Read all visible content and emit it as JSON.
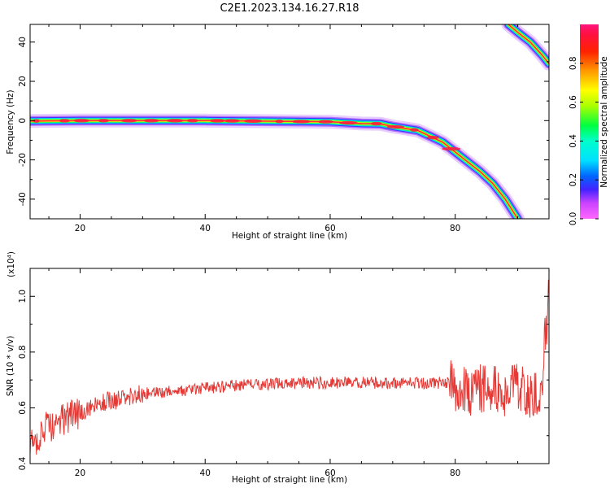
{
  "figure": {
    "title": "C2E1.2023.134.16.27.R18"
  },
  "chart_data": [
    {
      "type": "heatmap",
      "xlabel": "Height of straight line (km)",
      "ylabel": "Frequency (Hz)",
      "xlim": [
        12,
        95
      ],
      "ylim": [
        -50,
        49
      ],
      "xticks": [
        20,
        40,
        60,
        80
      ],
      "yticks": [
        -40,
        -20,
        0,
        20,
        40
      ],
      "colorbar": {
        "label": "Normalized spectral amplitude",
        "range": [
          0.0,
          1.0
        ],
        "ticks": [
          "0.0",
          "0.2",
          "0.4",
          "0.6",
          "0.8"
        ],
        "tick_values": [
          0.0,
          0.2,
          0.4,
          0.6,
          0.8
        ],
        "colormap": [
          "#ff00ff",
          "#0000ff",
          "#00ffff",
          "#00ff00",
          "#ffff00",
          "#ff0000",
          "#ff1493"
        ]
      },
      "ridges": [
        {
          "name": "",
          "points": [
            [
              12,
              -0.2
            ],
            [
              20,
              0
            ],
            [
              30,
              0
            ],
            [
              40,
              0
            ],
            [
              50,
              -0.3
            ],
            [
              60,
              -0.6
            ],
            [
              65,
              -1.5
            ],
            [
              68,
              -1.6
            ],
            [
              70,
              -3
            ],
            [
              72,
              -4
            ],
            [
              74,
              -5
            ],
            [
              76,
              -8
            ],
            [
              78,
              -11
            ],
            [
              80,
              -16
            ],
            [
              82,
              -21
            ],
            [
              84,
              -26
            ],
            [
              86,
              -32
            ],
            [
              88,
              -40
            ],
            [
              90,
              -50
            ]
          ]
        },
        {
          "name": "",
          "points": [
            [
              88.5,
              49
            ],
            [
              90,
              45
            ],
            [
              92,
              40
            ],
            [
              94,
              33
            ],
            [
              95,
              29
            ]
          ]
        }
      ]
    },
    {
      "type": "line",
      "xlabel": "Height of straight line (km)",
      "ylabel": "SNR (10 * v/v)",
      "yscale_label": "(x10⁴)",
      "xlim": [
        12,
        95
      ],
      "ylim": [
        0.4,
        1.1
      ],
      "xticks": [
        20,
        40,
        60,
        80
      ],
      "yticks": [
        0.4,
        0.6,
        0.8,
        1.0
      ],
      "yticklabels": [
        "0.4",
        "0.6",
        "0.8",
        "1.0"
      ],
      "series": [
        {
          "name": "",
          "color": "#e53935",
          "trend": [
            [
              12,
              0.46
            ],
            [
              14,
              0.52
            ],
            [
              16,
              0.54
            ],
            [
              18,
              0.57
            ],
            [
              20,
              0.58
            ],
            [
              22,
              0.6
            ],
            [
              24,
              0.62
            ],
            [
              26,
              0.63
            ],
            [
              28,
              0.64
            ],
            [
              30,
              0.65
            ],
            [
              35,
              0.66
            ],
            [
              40,
              0.67
            ],
            [
              45,
              0.68
            ],
            [
              50,
              0.685
            ],
            [
              55,
              0.69
            ],
            [
              60,
              0.69
            ],
            [
              65,
              0.69
            ],
            [
              70,
              0.69
            ],
            [
              75,
              0.69
            ],
            [
              79,
              0.69
            ],
            [
              80,
              0.67
            ],
            [
              82,
              0.66
            ],
            [
              85,
              0.67
            ],
            [
              88,
              0.65
            ],
            [
              90,
              0.67
            ],
            [
              92,
              0.65
            ],
            [
              94,
              0.68
            ],
            [
              95,
              1.1
            ]
          ]
        }
      ]
    }
  ]
}
